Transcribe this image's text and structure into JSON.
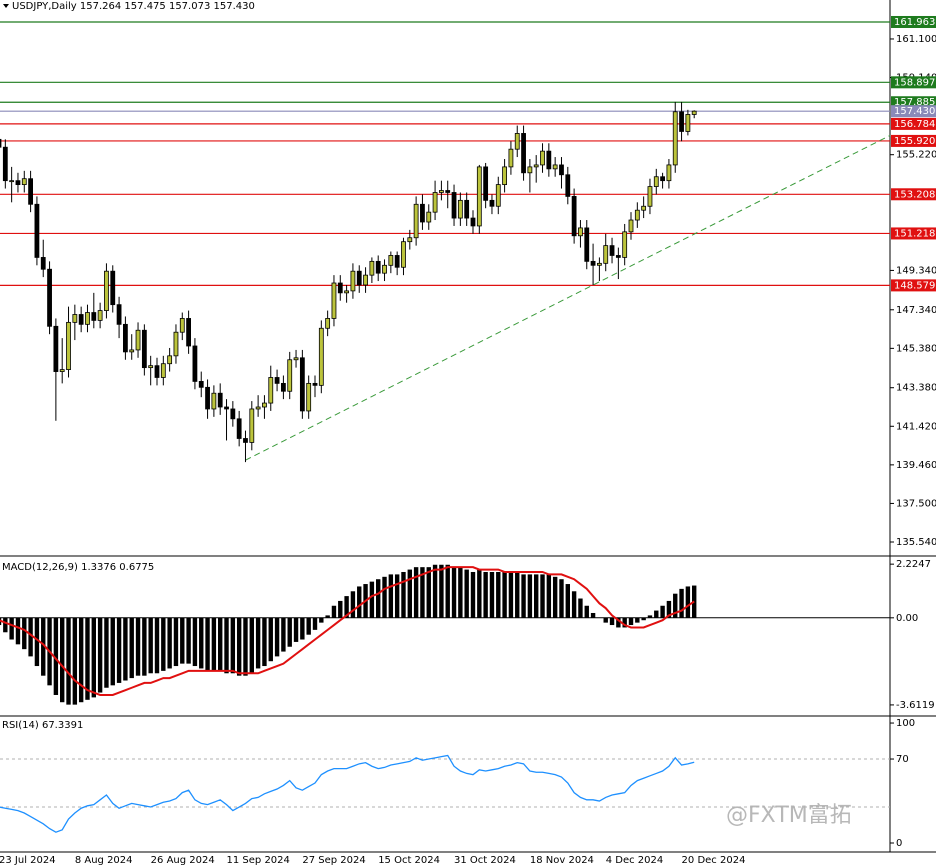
{
  "chart_data": [
    {
      "type": "candlestick",
      "title": "USDJPY,Daily  157.264 157.475 157.073 157.430",
      "categories": [
        "23 Jul 2024",
        null,
        null,
        null,
        null,
        null,
        null,
        null,
        null,
        null,
        null,
        null,
        "8 Aug 2024",
        null,
        null,
        null,
        null,
        null,
        null,
        null,
        null,
        null,
        null,
        null,
        "26 Aug 2024",
        null,
        null,
        null,
        null,
        null,
        null,
        null,
        null,
        null,
        null,
        null,
        "11 Sep 2024",
        null,
        null,
        null,
        null,
        null,
        null,
        null,
        null,
        null,
        null,
        null,
        "27 Sep 2024",
        null,
        null,
        null,
        null,
        null,
        null,
        null,
        null,
        null,
        null,
        null,
        "15 Oct 2024",
        null,
        null,
        null,
        null,
        null,
        null,
        null,
        null,
        null,
        null,
        null,
        "31 Oct 2024",
        null,
        null,
        null,
        null,
        null,
        null,
        null,
        null,
        null,
        null,
        null,
        "18 Nov 2024",
        null,
        null,
        null,
        null,
        null,
        null,
        null,
        null,
        null,
        null,
        null,
        "4 Dec 2024",
        null,
        null,
        null,
        null,
        null,
        null,
        null,
        null,
        null,
        null,
        null,
        "20 Dec 2024",
        null,
        null
      ],
      "open": [
        156.0,
        155.6,
        153.9,
        153.9,
        153.7,
        154.0,
        152.7,
        150.0,
        149.4,
        146.5,
        144.2,
        144.3,
        146.7,
        147.1,
        146.6,
        147.2,
        146.8,
        147.3,
        149.3,
        147.6,
        146.6,
        145.2,
        145.3,
        146.3,
        144.4,
        144.5,
        143.9,
        144.6,
        145.0,
        146.2,
        146.9,
        145.5,
        143.7,
        143.4,
        142.3,
        143.1,
        142.4,
        142.3,
        141.8,
        140.8,
        140.6,
        142.3,
        142.4,
        142.6,
        143.9,
        143.6,
        143.2,
        144.8,
        144.9,
        142.2,
        143.6,
        143.5,
        146.4,
        146.9,
        148.7,
        148.2,
        148.3,
        149.3,
        148.6,
        149.1,
        149.8,
        149.2,
        149.6,
        150.1,
        149.5,
        150.8,
        151.0,
        152.7,
        151.8,
        152.3,
        153.3,
        153.4,
        153.3,
        152.0,
        152.9,
        152.0,
        151.6,
        154.6,
        152.9,
        152.6,
        153.7,
        154.6,
        155.5,
        156.3,
        154.3,
        154.6,
        154.7,
        155.4,
        154.5,
        154.7,
        154.2,
        153.1,
        151.1,
        151.5,
        149.8,
        149.6,
        149.7,
        150.6,
        150.1,
        150.0,
        151.3,
        151.9,
        152.4,
        152.6,
        153.6,
        154.1,
        153.9,
        154.7,
        157.4,
        156.4,
        157.264
      ],
      "high": [
        156.4,
        156.0,
        154.6,
        154.3,
        154.4,
        154.4,
        153.1,
        150.9,
        149.8,
        146.9,
        145.9,
        147.5,
        147.6,
        147.5,
        147.6,
        148.2,
        147.7,
        149.7,
        149.6,
        148.0,
        147.0,
        146.1,
        146.7,
        146.6,
        145.0,
        144.9,
        145.0,
        145.4,
        146.6,
        147.2,
        147.3,
        145.9,
        144.2,
        143.8,
        143.5,
        143.6,
        142.8,
        142.7,
        142.2,
        141.2,
        142.7,
        143.0,
        143.0,
        144.5,
        144.3,
        144.0,
        145.2,
        145.3,
        145.3,
        144.0,
        144.0,
        146.8,
        147.3,
        149.1,
        149.1,
        148.6,
        149.7,
        149.6,
        149.5,
        150.0,
        150.1,
        149.9,
        150.3,
        150.3,
        151.0,
        151.4,
        153.1,
        153.2,
        152.7,
        153.9,
        153.9,
        153.9,
        153.7,
        153.3,
        153.3,
        152.4,
        154.7,
        154.8,
        153.2,
        154.1,
        155.0,
        155.9,
        156.7,
        156.7,
        155.0,
        155.2,
        155.8,
        155.8,
        155.1,
        155.1,
        154.6,
        153.5,
        151.9,
        151.9,
        150.7,
        150.0,
        151.2,
        151.0,
        150.5,
        151.7,
        152.3,
        152.8,
        153.1,
        154.0,
        154.5,
        154.3,
        155.0,
        157.9,
        157.9,
        157.5,
        157.475
      ],
      "low": [
        155.2,
        153.5,
        152.8,
        153.3,
        153.3,
        152.3,
        149.6,
        149.0,
        146.1,
        141.7,
        143.6,
        143.9,
        145.8,
        146.2,
        146.2,
        146.4,
        146.4,
        146.9,
        147.2,
        145.9,
        144.8,
        144.8,
        144.9,
        144.0,
        143.5,
        143.5,
        143.5,
        144.2,
        144.6,
        145.8,
        145.1,
        143.3,
        142.9,
        141.8,
        141.9,
        142.0,
        140.7,
        141.4,
        140.4,
        139.6,
        140.2,
        141.9,
        141.8,
        142.2,
        143.2,
        142.8,
        142.8,
        144.4,
        141.8,
        141.8,
        142.9,
        143.1,
        146.0,
        146.5,
        147.8,
        147.7,
        147.9,
        148.2,
        148.2,
        148.7,
        148.8,
        148.8,
        149.2,
        149.1,
        149.1,
        150.4,
        150.6,
        151.4,
        151.4,
        151.9,
        152.9,
        152.5,
        151.6,
        151.6,
        151.6,
        151.2,
        151.2,
        152.5,
        152.2,
        152.2,
        153.3,
        154.2,
        155.1,
        153.9,
        153.3,
        153.8,
        154.3,
        154.1,
        154.1,
        153.5,
        152.7,
        150.7,
        150.5,
        149.4,
        148.6,
        148.8,
        149.3,
        149.7,
        148.9,
        149.6,
        150.9,
        151.5,
        152.0,
        152.2,
        153.2,
        153.5,
        153.5,
        154.3,
        155.9,
        156.2,
        157.073
      ],
      "close": [
        155.6,
        153.9,
        153.9,
        153.7,
        154.0,
        152.7,
        150.0,
        149.4,
        146.5,
        144.2,
        144.3,
        146.7,
        147.1,
        146.6,
        147.2,
        146.8,
        147.3,
        149.3,
        147.6,
        146.6,
        145.2,
        145.3,
        146.3,
        144.4,
        144.5,
        143.9,
        144.6,
        145.0,
        146.2,
        146.9,
        145.5,
        143.7,
        143.4,
        142.3,
        143.1,
        142.4,
        142.3,
        141.8,
        140.8,
        140.6,
        142.3,
        142.4,
        142.6,
        143.9,
        143.6,
        143.2,
        144.8,
        144.9,
        142.2,
        143.6,
        143.5,
        146.4,
        146.9,
        148.7,
        148.2,
        148.3,
        149.3,
        148.6,
        149.1,
        149.8,
        149.2,
        149.6,
        150.1,
        149.5,
        150.8,
        151.0,
        152.7,
        151.8,
        152.3,
        153.3,
        153.4,
        153.3,
        152.0,
        152.9,
        152.0,
        151.6,
        154.6,
        152.9,
        152.6,
        153.7,
        154.6,
        155.5,
        156.3,
        154.3,
        154.6,
        154.7,
        155.4,
        154.5,
        154.7,
        154.2,
        153.1,
        151.1,
        151.5,
        149.8,
        149.6,
        149.7,
        150.6,
        150.1,
        150.0,
        151.3,
        151.9,
        152.4,
        152.6,
        153.6,
        154.1,
        153.9,
        154.7,
        157.4,
        156.4,
        157.264,
        157.43
      ],
      "up_color": "#bcc43c",
      "down_color": "#000000",
      "ylim": [
        134.88,
        163.08
      ],
      "yticks": [
        {
          "value": 135.54,
          "label": "135.540"
        },
        {
          "value": 137.5,
          "label": "137.500"
        },
        {
          "value": 139.46,
          "label": "139.460"
        },
        {
          "value": 141.42,
          "label": "141.420"
        },
        {
          "value": 143.38,
          "label": "143.380"
        },
        {
          "value": 145.38,
          "label": "145.380"
        },
        {
          "value": 147.34,
          "label": "147.340"
        },
        {
          "value": 149.34,
          "label": "149.340"
        },
        {
          "value": 155.22,
          "label": "155.220"
        },
        {
          "value": 159.14,
          "label": "159.140"
        },
        {
          "value": 161.1,
          "label": "161.100"
        }
      ],
      "levels": [
        {
          "value": 161.963,
          "label": "161.963",
          "color": "#1e7b1e"
        },
        {
          "value": 158.897,
          "label": "158.897",
          "color": "#1e7b1e"
        },
        {
          "value": 157.885,
          "label": "157.885",
          "color": "#1e7b1e"
        },
        {
          "value": 157.43,
          "label": "157.430",
          "color": "#8a8ab8"
        },
        {
          "value": 156.784,
          "label": "156.784",
          "color": "#e01010"
        },
        {
          "value": 155.92,
          "label": "155.920",
          "color": "#e01010"
        },
        {
          "value": 153.208,
          "label": "153.208",
          "color": "#e01010"
        },
        {
          "value": 151.218,
          "label": "151.218",
          "color": "#e01010"
        },
        {
          "value": 148.579,
          "label": "148.579",
          "color": "#e01010"
        }
      ],
      "trendline": {
        "x": [
          39,
          141
        ],
        "y": [
          139.7,
          156.2
        ],
        "color": "#3a9a3a"
      }
    },
    {
      "type": "macd",
      "title": "MACD(12,26,9) 1.3376 0.6775",
      "values": [
        -0.3,
        -0.6,
        -0.9,
        -1.1,
        -1.3,
        -1.6,
        -2.0,
        -2.4,
        -2.8,
        -3.2,
        -3.5,
        -3.6,
        -3.6,
        -3.5,
        -3.4,
        -3.3,
        -3.1,
        -2.9,
        -2.8,
        -2.7,
        -2.6,
        -2.5,
        -2.4,
        -2.4,
        -2.3,
        -2.3,
        -2.2,
        -2.1,
        -2.0,
        -1.9,
        -1.9,
        -2.0,
        -2.1,
        -2.2,
        -2.2,
        -2.2,
        -2.3,
        -2.3,
        -2.4,
        -2.4,
        -2.3,
        -2.1,
        -2.0,
        -1.8,
        -1.6,
        -1.4,
        -1.2,
        -1.0,
        -0.9,
        -0.7,
        -0.5,
        -0.2,
        0.1,
        0.5,
        0.7,
        0.9,
        1.1,
        1.3,
        1.4,
        1.5,
        1.6,
        1.7,
        1.8,
        1.8,
        1.9,
        2.0,
        2.1,
        2.1,
        2.1,
        2.2,
        2.2,
        2.2,
        2.1,
        2.1,
        2.0,
        1.9,
        2.0,
        1.9,
        1.9,
        1.9,
        1.9,
        1.9,
        1.9,
        1.8,
        1.8,
        1.8,
        1.8,
        1.8,
        1.7,
        1.6,
        1.4,
        1.1,
        0.8,
        0.5,
        0.2,
        0.0,
        -0.2,
        -0.3,
        -0.4,
        -0.4,
        -0.3,
        -0.2,
        -0.1,
        0.1,
        0.3,
        0.5,
        0.7,
        1.0,
        1.2,
        1.3,
        1.3376
      ],
      "color": "#000000",
      "signal": [
        -0.1,
        -0.2,
        -0.3,
        -0.4,
        -0.5,
        -0.7,
        -0.9,
        -1.1,
        -1.4,
        -1.7,
        -2.0,
        -2.3,
        -2.6,
        -2.8,
        -3.0,
        -3.1,
        -3.2,
        -3.2,
        -3.2,
        -3.1,
        -3.0,
        -2.9,
        -2.8,
        -2.7,
        -2.7,
        -2.6,
        -2.5,
        -2.5,
        -2.4,
        -2.3,
        -2.2,
        -2.2,
        -2.2,
        -2.2,
        -2.2,
        -2.2,
        -2.2,
        -2.2,
        -2.3,
        -2.3,
        -2.3,
        -2.3,
        -2.2,
        -2.1,
        -2.0,
        -1.9,
        -1.7,
        -1.5,
        -1.3,
        -1.1,
        -0.9,
        -0.7,
        -0.5,
        -0.3,
        -0.1,
        0.1,
        0.3,
        0.5,
        0.7,
        0.9,
        1.0,
        1.2,
        1.3,
        1.4,
        1.5,
        1.6,
        1.7,
        1.8,
        1.9,
        2.0,
        2.0,
        2.1,
        2.1,
        2.1,
        2.1,
        2.1,
        2.0,
        2.0,
        2.0,
        2.0,
        1.9,
        1.9,
        1.9,
        1.9,
        1.9,
        1.9,
        1.9,
        1.8,
        1.8,
        1.8,
        1.7,
        1.6,
        1.4,
        1.2,
        0.9,
        0.6,
        0.4,
        0.1,
        -0.1,
        -0.3,
        -0.4,
        -0.4,
        -0.4,
        -0.3,
        -0.2,
        -0.1,
        0.1,
        0.2,
        0.3,
        0.5,
        0.6775
      ],
      "signal_color": "#e01010",
      "ylim": [
        -4.03,
        2.48
      ],
      "yticks": [
        -3.6119,
        {
          "value": 0,
          "label": "0.00"
        },
        2.2247
      ]
    },
    {
      "type": "line",
      "title": "RSI(14) 67.3391",
      "values": [
        30,
        29,
        28,
        27,
        25,
        22,
        19,
        16,
        12,
        9,
        11,
        20,
        25,
        29,
        31,
        32,
        36,
        40,
        33,
        29,
        31,
        33,
        32,
        31,
        30,
        32,
        34,
        35,
        37,
        42,
        44,
        36,
        33,
        32,
        34,
        36,
        32,
        27,
        30,
        33,
        37,
        38,
        41,
        43,
        45,
        48,
        52,
        46,
        44,
        47,
        50,
        57,
        60,
        62,
        62,
        62,
        64,
        66,
        67,
        64,
        62,
        63,
        65,
        66,
        67,
        68,
        71,
        69,
        70,
        71,
        72,
        73,
        64,
        60,
        58,
        57,
        61,
        60,
        61,
        62,
        64,
        65,
        67,
        66,
        60,
        59,
        59,
        58,
        57,
        55,
        50,
        42,
        38,
        36,
        36,
        35,
        38,
        40,
        41,
        42,
        48,
        52,
        54,
        56,
        58,
        60,
        64,
        71,
        65,
        66,
        67.3391
      ],
      "color": "#1e90ff",
      "ylim": [
        -7.5,
        104.2
      ],
      "yticks": [
        0,
        70,
        100
      ],
      "levels": [
        30,
        70
      ]
    }
  ],
  "watermark": "@FXTM富拓"
}
